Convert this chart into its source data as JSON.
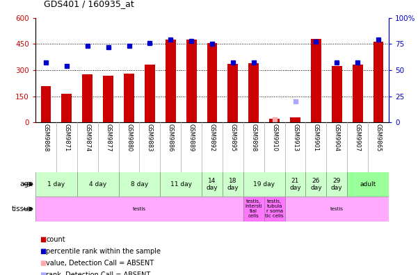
{
  "title": "GDS401 / 160935_at",
  "samples": [
    "GSM9868",
    "GSM9871",
    "GSM9874",
    "GSM9877",
    "GSM9880",
    "GSM9883",
    "GSM9886",
    "GSM9889",
    "GSM9892",
    "GSM9895",
    "GSM9898",
    "GSM9910",
    "GSM9913",
    "GSM9901",
    "GSM9904",
    "GSM9907",
    "GSM9865"
  ],
  "counts": [
    210,
    165,
    275,
    270,
    280,
    330,
    475,
    475,
    455,
    335,
    340,
    20,
    30,
    480,
    325,
    330,
    465
  ],
  "percentile_ranks": [
    57,
    54,
    73,
    72,
    73,
    76,
    79,
    78,
    75,
    57,
    57,
    null,
    null,
    77,
    57,
    57,
    79
  ],
  "absent_value": [
    null,
    null,
    null,
    null,
    null,
    null,
    null,
    null,
    null,
    null,
    null,
    15,
    null,
    null,
    null,
    null,
    null
  ],
  "absent_rank": [
    null,
    null,
    null,
    null,
    null,
    null,
    null,
    null,
    null,
    null,
    null,
    null,
    20,
    null,
    null,
    null,
    null
  ],
  "count_absent": [
    false,
    false,
    false,
    false,
    false,
    false,
    false,
    false,
    false,
    false,
    false,
    true,
    true,
    false,
    false,
    false,
    false
  ],
  "left_ylim": [
    0,
    600
  ],
  "right_ylim": [
    0,
    100
  ],
  "left_yticks": [
    0,
    150,
    300,
    450,
    600
  ],
  "right_yticks": [
    0,
    25,
    50,
    75,
    100
  ],
  "right_yticklabels": [
    "0",
    "25",
    "50",
    "75",
    "100%"
  ],
  "age_groups": [
    {
      "label": "1 day",
      "start": 0,
      "end": 1,
      "color": "#ccffcc"
    },
    {
      "label": "4 day",
      "start": 2,
      "end": 3,
      "color": "#ccffcc"
    },
    {
      "label": "8 day",
      "start": 4,
      "end": 5,
      "color": "#ccffcc"
    },
    {
      "label": "11 day",
      "start": 6,
      "end": 7,
      "color": "#ccffcc"
    },
    {
      "label": "14\nday",
      "start": 8,
      "end": 8,
      "color": "#ccffcc"
    },
    {
      "label": "18\nday",
      "start": 9,
      "end": 9,
      "color": "#ccffcc"
    },
    {
      "label": "19 day",
      "start": 10,
      "end": 11,
      "color": "#ccffcc"
    },
    {
      "label": "21\nday",
      "start": 12,
      "end": 12,
      "color": "#ccffcc"
    },
    {
      "label": "26\nday",
      "start": 13,
      "end": 13,
      "color": "#ccffcc"
    },
    {
      "label": "29\nday",
      "start": 14,
      "end": 14,
      "color": "#ccffcc"
    },
    {
      "label": "adult",
      "start": 15,
      "end": 16,
      "color": "#99ff99"
    }
  ],
  "tissue_groups": [
    {
      "label": "testis",
      "start": 0,
      "end": 9,
      "color": "#ffaaff"
    },
    {
      "label": "testis,\nintersti\ntial\ncells",
      "start": 10,
      "end": 10,
      "color": "#ff77ff"
    },
    {
      "label": "testis,\ntubula\nr soma\ntic cells",
      "start": 11,
      "end": 11,
      "color": "#ff77ff"
    },
    {
      "label": "testis",
      "start": 12,
      "end": 16,
      "color": "#ffaaff"
    }
  ],
  "bar_color": "#cc0000",
  "rank_color": "#0000cc",
  "absent_value_color": "#ffaaaa",
  "absent_rank_color": "#aaaaff",
  "bg_color": "#ffffff",
  "tick_label_area_bg": "#cccccc",
  "legend_items": [
    {
      "color": "#cc0000",
      "label": "count"
    },
    {
      "color": "#0000cc",
      "label": "percentile rank within the sample"
    },
    {
      "color": "#ffaaaa",
      "label": "value, Detection Call = ABSENT"
    },
    {
      "color": "#aaaaff",
      "label": "rank, Detection Call = ABSENT"
    }
  ]
}
